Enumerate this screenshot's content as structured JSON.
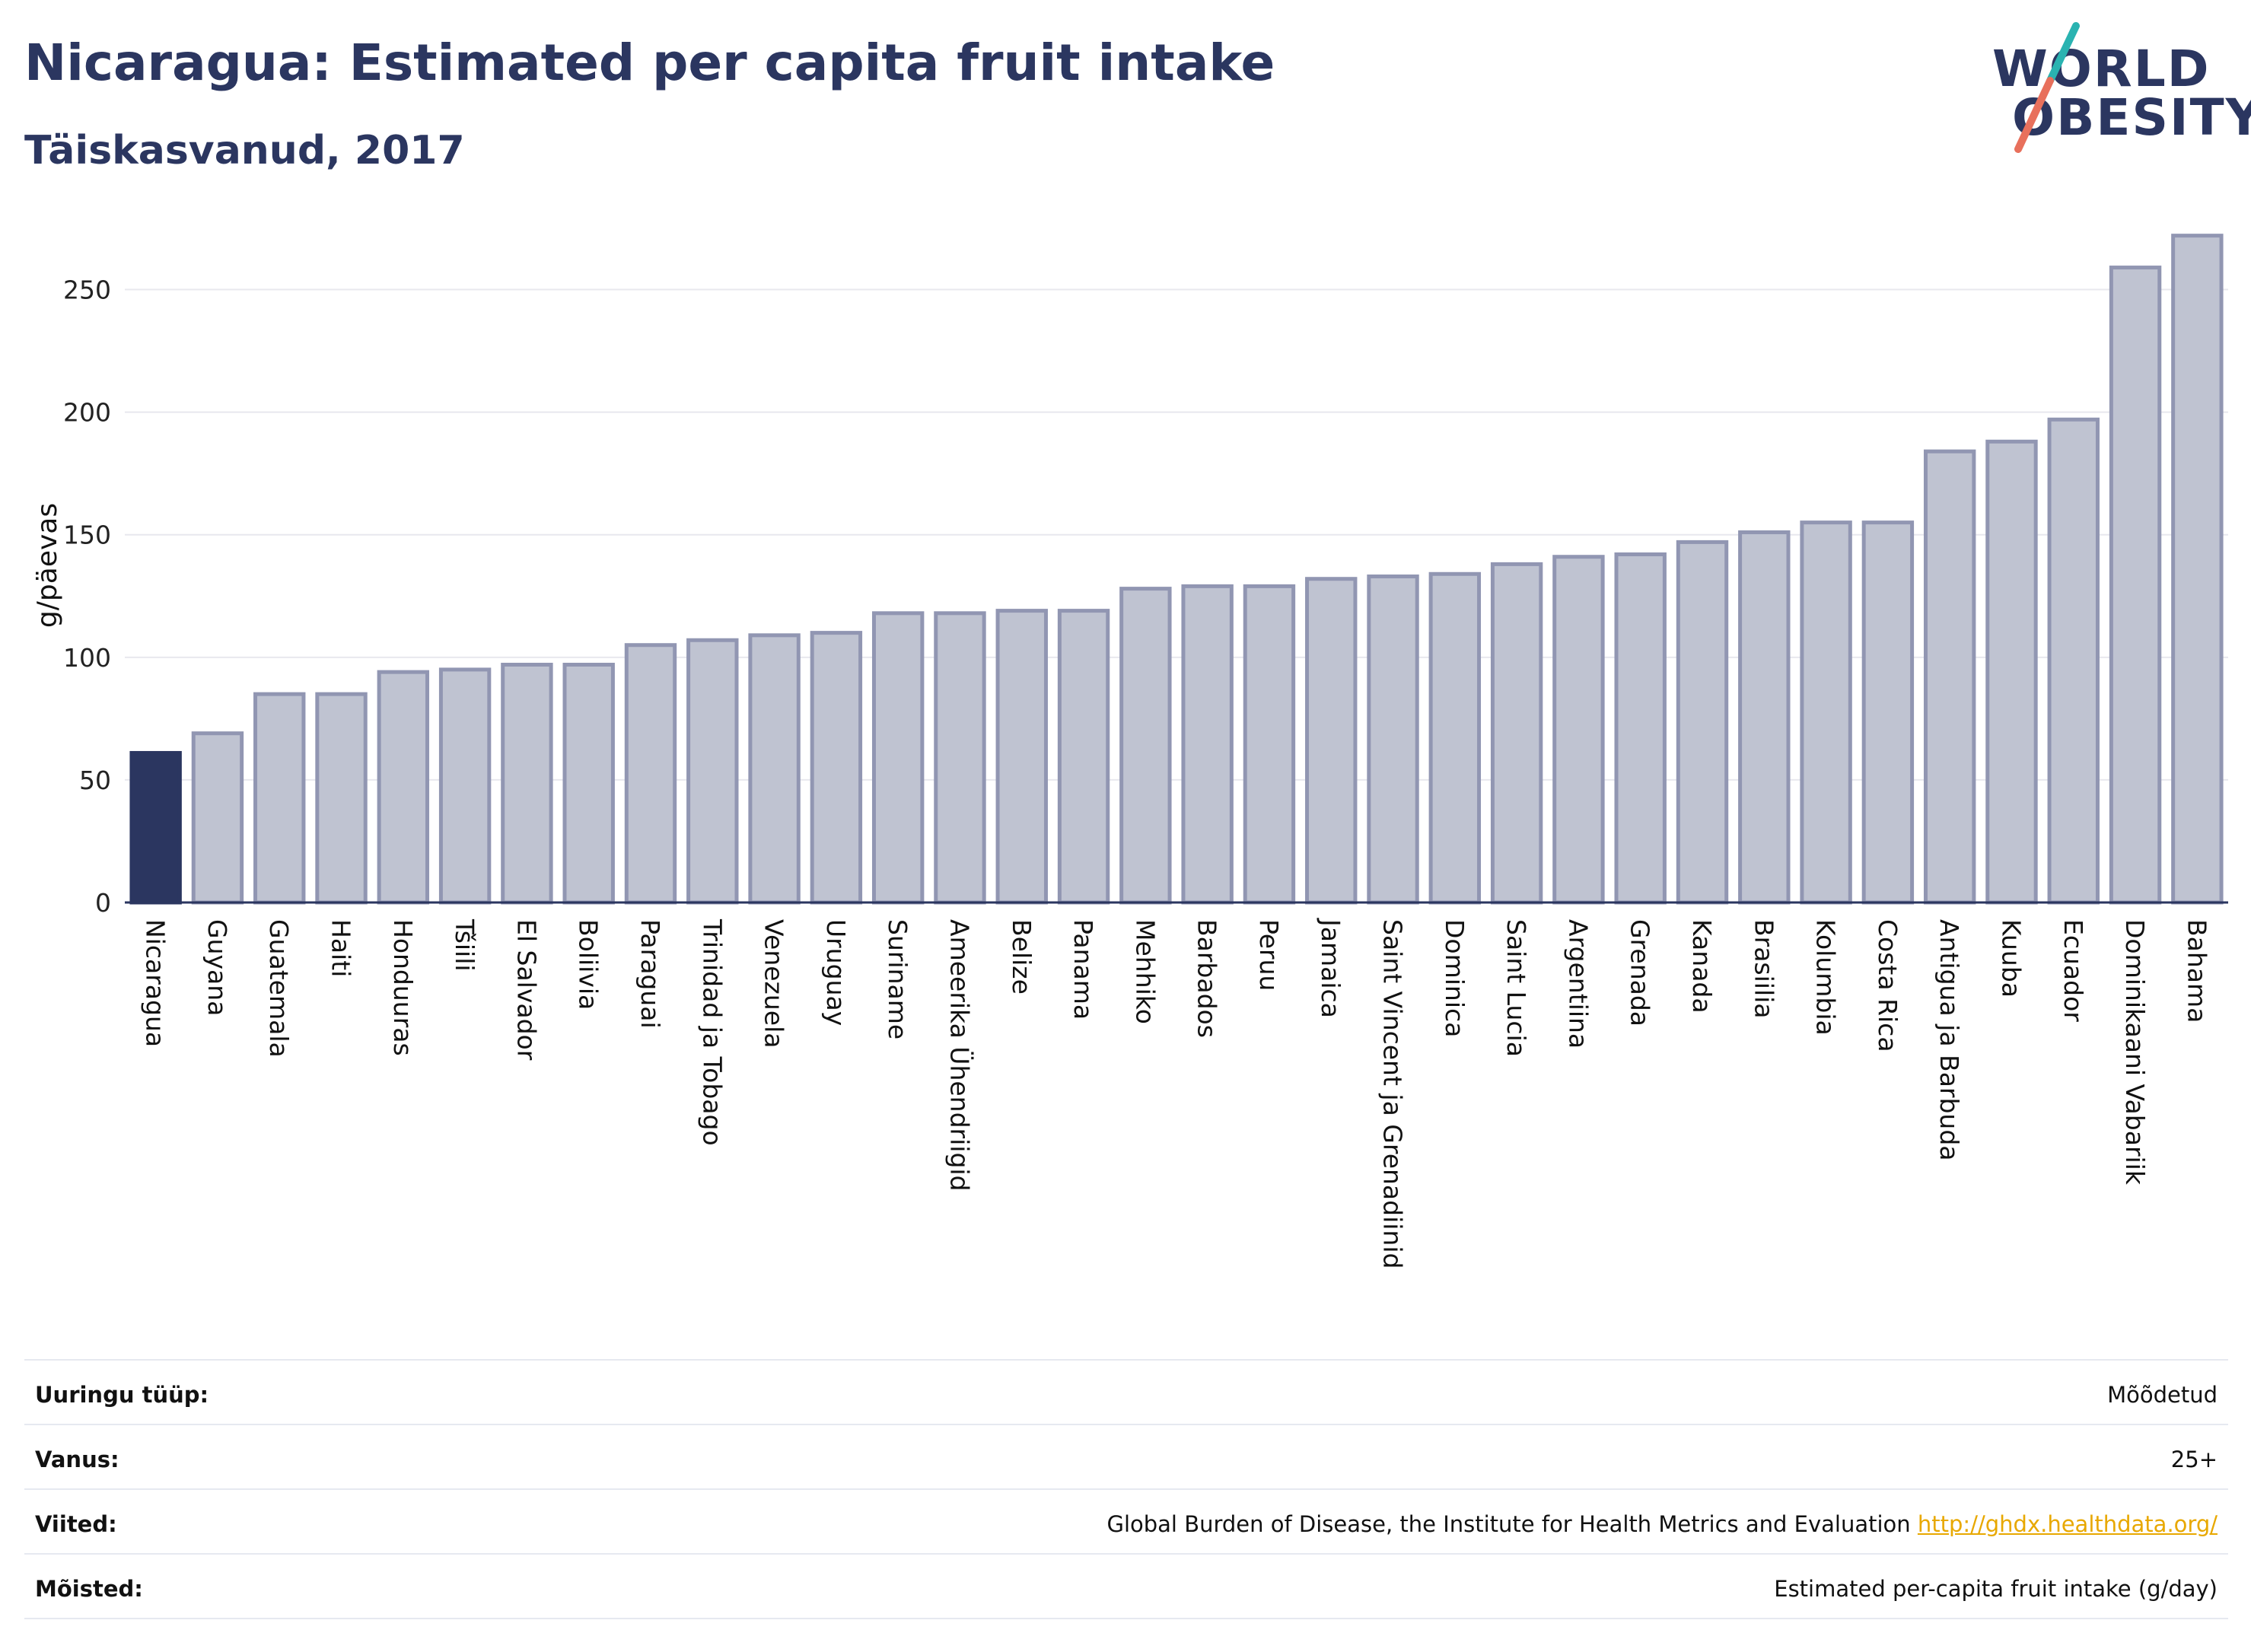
{
  "header": {
    "title": "Nicaragua: Estimated per capita fruit intake",
    "subtitle": "Täiskasvanud, 2017"
  },
  "logo": {
    "line1": "WORLD",
    "line2": "OBESITY",
    "colors": {
      "text": "#2b3660",
      "slash_top": "#2ab3b1",
      "slash_bottom": "#e8705c"
    }
  },
  "chart_data": {
    "type": "bar",
    "ylabel": "g/päevas",
    "ylim": [
      0,
      275
    ],
    "yticks": [
      0,
      50,
      100,
      150,
      200,
      250
    ],
    "grid": true,
    "highlight": "Nicaragua",
    "colors": {
      "highlight": "#2b3660",
      "bar_fill": "#bfc3d1",
      "bar_stroke": "#9196b2",
      "grid": "#e8e8ee",
      "axis": "#2b3660"
    },
    "categories": [
      "Nicaragua",
      "Guyana",
      "Guatemala",
      "Haiti",
      "Honduuras",
      "Tšiili",
      "El Salvador",
      "Boliivia",
      "Paraguai",
      "Trinidad ja Tobago",
      "Venezuela",
      "Uruguay",
      "Suriname",
      "Ameerika Ühendriigid",
      "Belize",
      "Panama",
      "Mehhiko",
      "Barbados",
      "Peruu",
      "Jamaica",
      "Saint Vincent ja Grenadiinid",
      "Dominica",
      "Saint Lucia",
      "Argentiina",
      "Grenada",
      "Kanada",
      "Brasiilia",
      "Kolumbia",
      "Costa Rica",
      "Antigua ja Barbuda",
      "Kuuba",
      "Ecuador",
      "Dominikaani Vabariik",
      "Bahama"
    ],
    "values": [
      61,
      69,
      85,
      85,
      94,
      95,
      97,
      97,
      105,
      107,
      109,
      110,
      118,
      118,
      119,
      119,
      128,
      129,
      129,
      132,
      133,
      134,
      138,
      141,
      142,
      147,
      151,
      155,
      155,
      184,
      188,
      197,
      259,
      272
    ]
  },
  "info": [
    {
      "label": "Uuringu tüüp:",
      "value": "Mõõdetud"
    },
    {
      "label": "Vanus:",
      "value": "25+"
    },
    {
      "label": "Viited:",
      "value": "Global Burden of Disease, the Institute for Health Metrics and Evaluation",
      "link": "http://ghdx.healthdata.org/"
    },
    {
      "label": "Mõisted:",
      "value": "Estimated per-capita fruit intake (g/day)"
    }
  ]
}
